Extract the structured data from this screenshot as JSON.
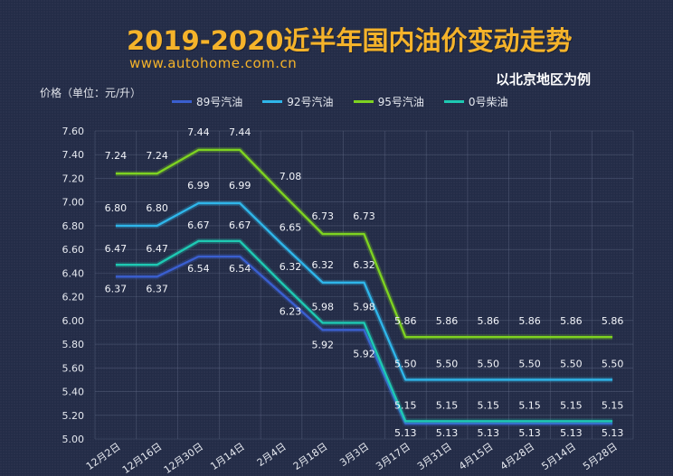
{
  "title": "2019-2020近半年国内油价变动走势",
  "website": "www.autohome.com.cn",
  "subtitle": "以北京地区为例",
  "colors": {
    "background": "#232c47",
    "title": "#f5b32a",
    "gridline": "#6a7390"
  },
  "chart_data": {
    "type": "line",
    "title": "2019-2020近半年国内油价变动走势",
    "ylabel": "价格（单位：元/升）",
    "xlabel": "",
    "ylim": [
      5.0,
      7.6
    ],
    "yticks": [
      "5.00",
      "5.20",
      "5.40",
      "5.60",
      "5.80",
      "6.00",
      "6.20",
      "6.40",
      "6.60",
      "6.80",
      "7.00",
      "7.20",
      "7.40",
      "7.60"
    ],
    "x": [
      "12月2日",
      "12月16日",
      "12月30日",
      "1月14日",
      "2月4日",
      "2月18日",
      "3月3日",
      "3月17日",
      "3月31日",
      "4月15日",
      "4月28日",
      "5月14日",
      "5月28日"
    ],
    "grid": true,
    "legend_position": "top",
    "series": [
      {
        "name": "89号汽油",
        "color": "#3a5fd0",
        "values": [
          6.37,
          6.37,
          6.54,
          6.54,
          6.23,
          5.92,
          5.92,
          5.13,
          5.13,
          5.13,
          5.13,
          5.13,
          5.13
        ]
      },
      {
        "name": "92号汽油",
        "color": "#2fb6ea",
        "values": [
          6.8,
          6.8,
          6.99,
          6.99,
          6.65,
          6.32,
          6.32,
          5.5,
          5.5,
          5.5,
          5.5,
          5.5,
          5.5
        ]
      },
      {
        "name": "95号汽油",
        "color": "#7ed321",
        "values": [
          7.24,
          7.24,
          7.44,
          7.44,
          7.08,
          6.73,
          6.73,
          5.86,
          5.86,
          5.86,
          5.86,
          5.86,
          5.86
        ]
      },
      {
        "name": "0号柴油",
        "color": "#1ec9b3",
        "values": [
          6.47,
          6.47,
          6.67,
          6.67,
          6.32,
          5.98,
          5.98,
          5.15,
          5.15,
          5.15,
          5.15,
          5.15,
          5.15
        ]
      }
    ]
  }
}
